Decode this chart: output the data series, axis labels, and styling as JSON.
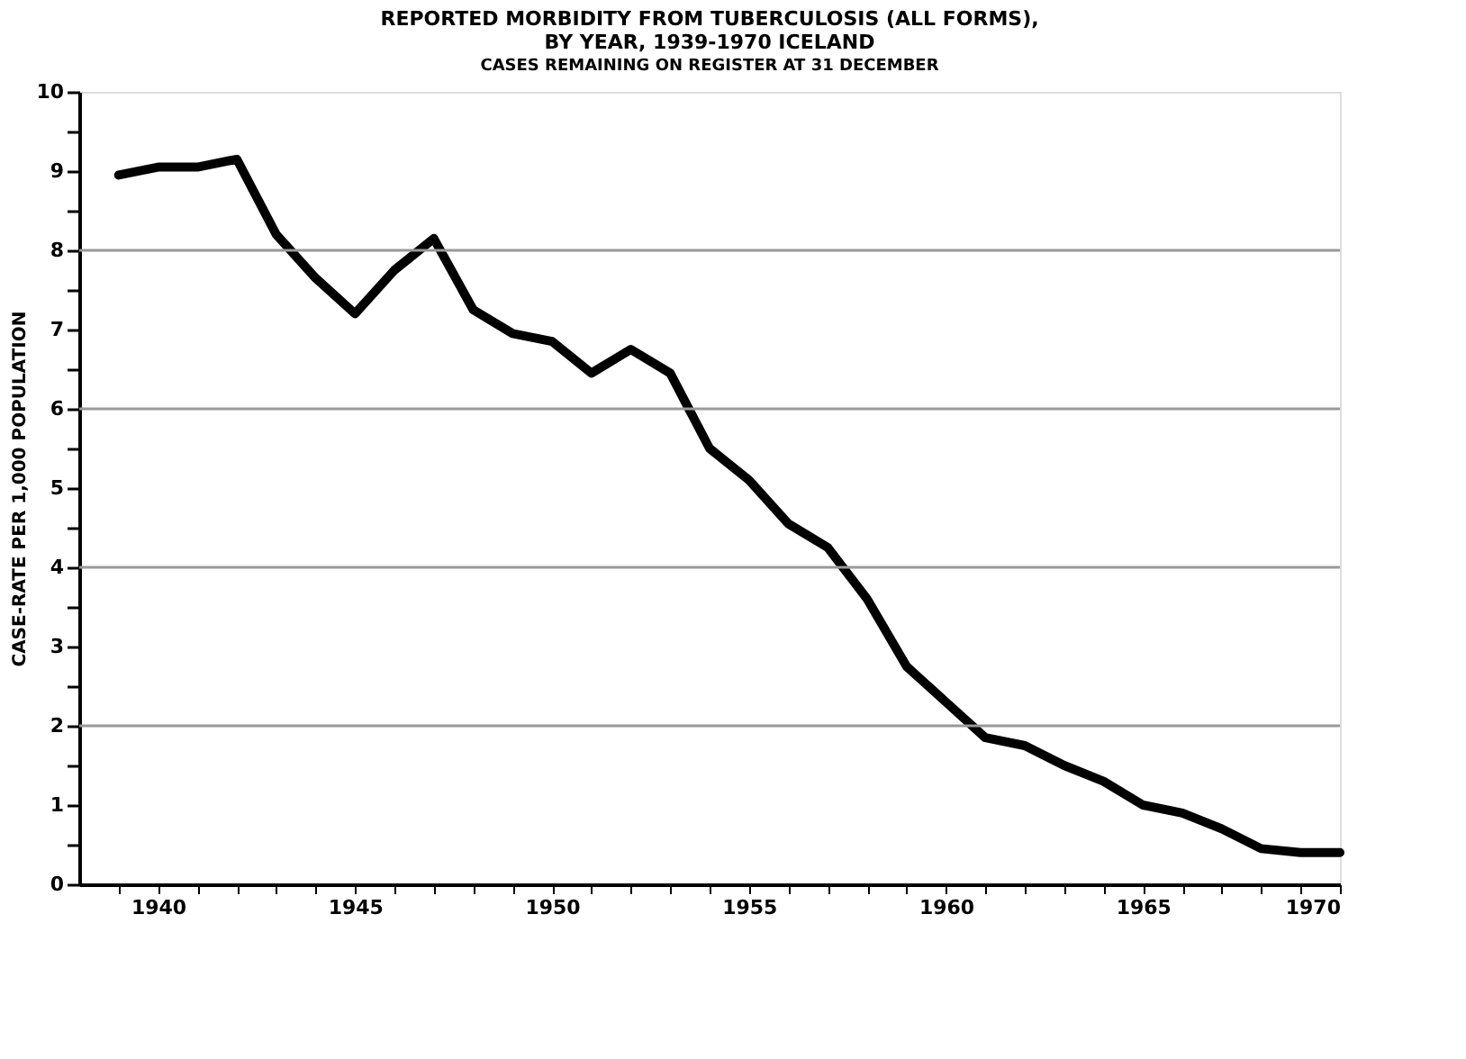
{
  "chart_data": {
    "type": "line",
    "title": [
      "REPORTED MORBIDITY FROM TUBERCULOSIS (ALL FORMS),",
      "BY YEAR, 1939-1970 ICELAND"
    ],
    "subtitle": "CASES REMAINING ON REGISTER AT 31 DECEMBER",
    "ylabel": "CASE-RATE PER 1,000 POPULATION",
    "x": [
      1939,
      1940,
      1941,
      1942,
      1943,
      1944,
      1945,
      1946,
      1947,
      1948,
      1949,
      1950,
      1951,
      1952,
      1953,
      1954,
      1955,
      1956,
      1957,
      1958,
      1959,
      1960,
      1961,
      1962,
      1963,
      1964,
      1965,
      1966,
      1967,
      1968,
      1969,
      1970
    ],
    "series": [
      {
        "color": "#000000",
        "values": [
          8.95,
          9.05,
          9.05,
          9.15,
          8.2,
          7.65,
          7.2,
          7.75,
          8.15,
          7.25,
          6.95,
          6.85,
          6.45,
          6.75,
          6.45,
          5.5,
          5.1,
          4.55,
          4.25,
          3.6,
          2.75,
          2.3,
          1.85,
          1.75,
          1.5,
          1.3,
          1.0,
          0.9,
          0.7,
          0.45,
          0.4,
          0.4
        ]
      }
    ],
    "xlim": [
      1938,
      1970
    ],
    "xticks": [
      {
        "value": 1939,
        "label": null
      },
      1940,
      {
        "value": 1941,
        "label": null
      },
      {
        "value": 1942,
        "label": null
      },
      {
        "value": 1943,
        "label": null
      },
      {
        "value": 1944,
        "label": null
      },
      1945,
      {
        "value": 1946,
        "label": null
      },
      {
        "value": 1947,
        "label": null
      },
      {
        "value": 1948,
        "label": null
      },
      {
        "value": 1949,
        "label": null
      },
      1950,
      {
        "value": 1951,
        "label": null
      },
      {
        "value": 1952,
        "label": null
      },
      {
        "value": 1953,
        "label": null
      },
      {
        "value": 1954,
        "label": null
      },
      1955,
      {
        "value": 1956,
        "label": null
      },
      {
        "value": 1957,
        "label": null
      },
      {
        "value": 1958,
        "label": null
      },
      {
        "value": 1959,
        "label": null
      },
      1960,
      {
        "value": 1961,
        "label": null
      },
      {
        "value": 1962,
        "label": null
      },
      {
        "value": 1963,
        "label": null
      },
      {
        "value": 1964,
        "label": null
      },
      1965,
      {
        "value": 1966,
        "label": null
      },
      {
        "value": 1967,
        "label": null
      },
      {
        "value": 1968,
        "label": null
      },
      {
        "value": 1969,
        "label": null
      },
      1970
    ],
    "ylim": [
      0,
      10
    ],
    "yticks": [
      0,
      {
        "value": 0.5,
        "label": null
      },
      1,
      {
        "value": 1.5,
        "label": null
      },
      2,
      {
        "value": 2.5,
        "label": null
      },
      3,
      {
        "value": 3.5,
        "label": null
      },
      4,
      {
        "value": 4.5,
        "label": null
      },
      5,
      {
        "value": 5.5,
        "label": null
      },
      6,
      {
        "value": 6.5,
        "label": null
      },
      7,
      {
        "value": 7.5,
        "label": null
      },
      8,
      {
        "value": 8.5,
        "label": null
      },
      9,
      {
        "value": 9.5,
        "label": null
      },
      10
    ],
    "ref_lines": [
      {
        "axis": "y",
        "value": 2,
        "color": "#999999"
      },
      {
        "axis": "y",
        "value": 4,
        "color": "#999999"
      },
      {
        "axis": "y",
        "value": 6,
        "color": "#999999"
      },
      {
        "axis": "y",
        "value": 8,
        "color": "#999999"
      }
    ],
    "grid": false,
    "legend": false,
    "marker": "none",
    "line_style": "solid"
  }
}
